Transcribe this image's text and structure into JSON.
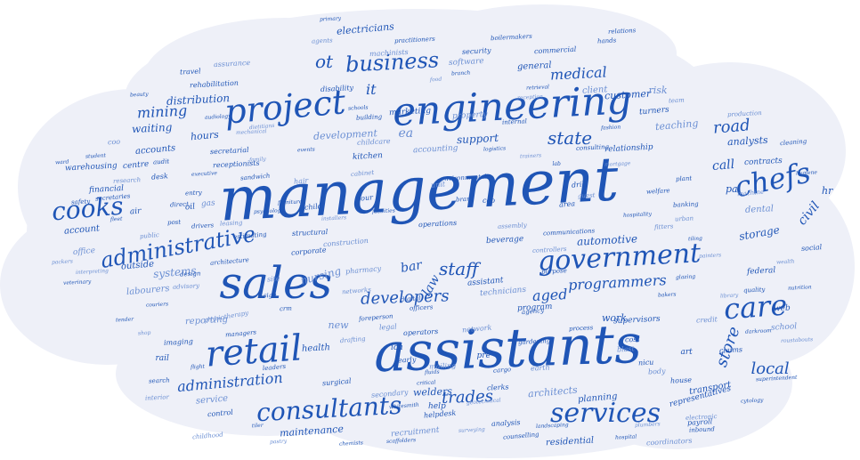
{
  "title": "",
  "colors": {
    "background": "#ffffff",
    "cloud": "#eef0f8",
    "word_dark": "#1f55b6",
    "word_light": "#6b8fd3"
  },
  "words": [
    {
      "text": "management",
      "tier": "xl"
    },
    {
      "text": "assistants",
      "tier": "xl"
    },
    {
      "text": "sales",
      "tier": "lg"
    },
    {
      "text": "engineering",
      "tier": "lg"
    },
    {
      "text": "project",
      "tier": "lg"
    },
    {
      "text": "retail",
      "tier": "lg"
    },
    {
      "text": "services",
      "tier": "md"
    },
    {
      "text": "government",
      "tier": "md"
    },
    {
      "text": "consultants",
      "tier": "md"
    },
    {
      "text": "chefs",
      "tier": "md"
    },
    {
      "text": "care",
      "tier": "md"
    },
    {
      "text": "cooks",
      "tier": "md"
    },
    {
      "text": "administrative",
      "tier": "md"
    },
    {
      "text": "business",
      "tier": "md"
    },
    {
      "text": "state",
      "tier": "sm"
    },
    {
      "text": "staff",
      "tier": "sm"
    },
    {
      "text": "developers",
      "tier": "sm"
    },
    {
      "text": "programmers",
      "tier": "sm"
    },
    {
      "text": "store",
      "tier": "sm"
    },
    {
      "text": "road",
      "tier": "sm"
    },
    {
      "text": "local",
      "tier": "sm"
    },
    {
      "text": "trades",
      "tier": "sm"
    },
    {
      "text": "administration",
      "tier": "sm"
    },
    {
      "text": "medical",
      "tier": "sm"
    },
    {
      "text": "mining",
      "tier": "sm"
    },
    {
      "text": "aged",
      "tier": "sm"
    },
    {
      "text": "law",
      "tier": "sm"
    },
    {
      "text": "call",
      "tier": "sm"
    },
    {
      "text": "civil",
      "tier": "sm"
    },
    {
      "text": "bar",
      "tier": "sm"
    },
    {
      "text": "nursing",
      "tier": "xs"
    },
    {
      "text": "automotive",
      "tier": "xs"
    },
    {
      "text": "storage",
      "tier": "xs"
    },
    {
      "text": "systems",
      "tier": "xs"
    },
    {
      "text": "distribution",
      "tier": "xs"
    },
    {
      "text": "support",
      "tier": "xs"
    },
    {
      "text": "development",
      "tier": "xs"
    },
    {
      "text": "waiting",
      "tier": "xs"
    },
    {
      "text": "hours",
      "tier": "xs"
    },
    {
      "text": "teaching",
      "tier": "xs"
    },
    {
      "text": "analysts",
      "tier": "xs"
    },
    {
      "text": "customer",
      "tier": "xs"
    },
    {
      "text": "client",
      "tier": "xs"
    },
    {
      "text": "general",
      "tier": "xs"
    },
    {
      "text": "electricians",
      "tier": "xs"
    },
    {
      "text": "architects",
      "tier": "xs"
    },
    {
      "text": "welders",
      "tier": "xs"
    },
    {
      "text": "work",
      "tier": "xs"
    },
    {
      "text": "new",
      "tier": "xs"
    },
    {
      "text": "health",
      "tier": "xs"
    },
    {
      "text": "maintenance",
      "tier": "xs"
    },
    {
      "text": "labourers",
      "tier": "xs"
    },
    {
      "text": "outside",
      "tier": "xs"
    },
    {
      "text": "account",
      "tier": "xs"
    },
    {
      "text": "service",
      "tier": "xs"
    },
    {
      "text": "planning",
      "tier": "xs"
    },
    {
      "text": "transport",
      "tier": "xs"
    },
    {
      "text": "reporting",
      "tier": "xs"
    },
    {
      "text": "accounts",
      "tier": "xs"
    },
    {
      "text": "centre",
      "tier": "xs"
    },
    {
      "text": "recruitment",
      "tier": "xs"
    },
    {
      "text": "representatives",
      "tier": "xs"
    },
    {
      "text": "residential",
      "tier": "xs"
    },
    {
      "text": "dental",
      "tier": "xs"
    },
    {
      "text": "pa",
      "tier": "xs"
    },
    {
      "text": "hr",
      "tier": "xs"
    },
    {
      "text": "ea",
      "tier": "xs"
    },
    {
      "text": "ot",
      "tier": "xs"
    },
    {
      "text": "it",
      "tier": "xs"
    },
    {
      "text": "risk",
      "tier": "xs"
    },
    {
      "text": "turners",
      "tier": "xs"
    },
    {
      "text": "web",
      "tier": "xs"
    },
    {
      "text": "school",
      "tier": "xs"
    },
    {
      "text": "federal",
      "tier": "xs"
    },
    {
      "text": "supervisors",
      "tier": "xs"
    },
    {
      "text": "technicians",
      "tier": "xs"
    },
    {
      "text": "program",
      "tier": "xs"
    },
    {
      "text": "assistant",
      "tier": "xs"
    },
    {
      "text": "software",
      "tier": "xs"
    },
    {
      "text": "security",
      "tier": "xs"
    },
    {
      "text": "helpdesk",
      "tier": "xs"
    },
    {
      "text": "property",
      "tier": "xs"
    },
    {
      "text": "beverage",
      "tier": "xs"
    },
    {
      "text": "marketing",
      "tier": "xs"
    },
    {
      "text": "accounting",
      "tier": "xs"
    },
    {
      "text": "kitchen",
      "tier": "xs"
    },
    {
      "text": "operations",
      "tier": "xs"
    },
    {
      "text": "construction",
      "tier": "xs"
    },
    {
      "text": "warehousing",
      "tier": "xs"
    },
    {
      "text": "financial",
      "tier": "xs"
    },
    {
      "text": "office",
      "tier": "xs"
    },
    {
      "text": "rehabilitation",
      "tier": "xs"
    },
    {
      "text": "disability",
      "tier": "xs"
    },
    {
      "text": "machinists",
      "tier": "xs"
    },
    {
      "text": "relationship",
      "tier": "xs"
    },
    {
      "text": "contracts",
      "tier": "xs"
    },
    {
      "text": "production",
      "tier": "xs"
    },
    {
      "text": "commercial",
      "tier": "xs"
    },
    {
      "text": "boilermakers",
      "tier": "xs"
    },
    {
      "text": "pharmacy",
      "tier": "xs"
    },
    {
      "text": "corporate",
      "tier": "xs"
    },
    {
      "text": "structural",
      "tier": "xs"
    },
    {
      "text": "childcare",
      "tier": "xs"
    },
    {
      "text": "receptionists",
      "tier": "xs"
    },
    {
      "text": "secretarial",
      "tier": "xs"
    },
    {
      "text": "assurance",
      "tier": "xs"
    },
    {
      "text": "travel",
      "tier": "xs"
    },
    {
      "text": "imaging",
      "tier": "xs"
    },
    {
      "text": "physiotherapy",
      "tier": "xs"
    },
    {
      "text": "managers",
      "tier": "xs"
    },
    {
      "text": "leaders",
      "tier": "xs"
    },
    {
      "text": "legal",
      "tier": "xs"
    },
    {
      "text": "operators",
      "tier": "xs"
    },
    {
      "text": "foreperson",
      "tier": "xs"
    },
    {
      "text": "drafting",
      "tier": "xs"
    },
    {
      "text": "icu",
      "tier": "xs"
    },
    {
      "text": "early",
      "tier": "xs"
    },
    {
      "text": "mailing",
      "tier": "xs"
    },
    {
      "text": "clerks",
      "tier": "xs"
    },
    {
      "text": "agency",
      "tier": "xs"
    },
    {
      "text": "blast",
      "tier": "xs"
    },
    {
      "text": "cost",
      "tier": "xs"
    },
    {
      "text": "nicu",
      "tier": "xs"
    },
    {
      "text": "body",
      "tier": "xs"
    },
    {
      "text": "art",
      "tier": "xs"
    },
    {
      "text": "claims",
      "tier": "xs"
    },
    {
      "text": "credit",
      "tier": "xs"
    },
    {
      "text": "quality",
      "tier": "xs"
    },
    {
      "text": "social",
      "tier": "xs"
    },
    {
      "text": "machine",
      "tier": "xs"
    },
    {
      "text": "banking",
      "tier": "xs"
    },
    {
      "text": "drill",
      "tier": "xs"
    },
    {
      "text": "guest",
      "tier": "xs"
    },
    {
      "text": "area",
      "tier": "xs"
    },
    {
      "text": "brand",
      "tier": "xs"
    },
    {
      "text": "unit",
      "tier": "xs"
    },
    {
      "text": "ceo",
      "tier": "xs"
    },
    {
      "text": "desk",
      "tier": "xs"
    },
    {
      "text": "hair",
      "tier": "xs"
    },
    {
      "text": "child",
      "tier": "xs"
    },
    {
      "text": "tour",
      "tier": "xs"
    },
    {
      "text": "coo",
      "tier": "xs"
    },
    {
      "text": "air",
      "tier": "xs"
    },
    {
      "text": "oil",
      "tier": "xs"
    },
    {
      "text": "gas",
      "tier": "xs"
    },
    {
      "text": "post",
      "tier": "xs"
    },
    {
      "text": "drivers",
      "tier": "xs"
    },
    {
      "text": "site",
      "tier": "xs"
    },
    {
      "text": "sign",
      "tier": "xs"
    },
    {
      "text": "crm",
      "tier": "xs"
    },
    {
      "text": "networks",
      "tier": "xs"
    },
    {
      "text": "digital",
      "tier": "xs"
    },
    {
      "text": "officers",
      "tier": "xs"
    },
    {
      "text": "network",
      "tier": "xs"
    },
    {
      "text": "pre",
      "tier": "xs"
    },
    {
      "text": "cargo",
      "tier": "xs"
    },
    {
      "text": "earth",
      "tier": "xs"
    },
    {
      "text": "house",
      "tier": "xs"
    },
    {
      "text": "payroll",
      "tier": "xs"
    },
    {
      "text": "coordinators",
      "tier": "xs"
    },
    {
      "text": "counselling",
      "tier": "xs"
    },
    {
      "text": "analysis",
      "tier": "xs"
    },
    {
      "text": "secondary",
      "tier": "xs"
    },
    {
      "text": "surgical",
      "tier": "xs"
    },
    {
      "text": "control",
      "tier": "xs"
    },
    {
      "text": "childhood",
      "tier": "xs"
    },
    {
      "text": "rail",
      "tier": "xs"
    },
    {
      "text": "search",
      "tier": "xs"
    },
    {
      "text": "interior",
      "tier": "xs"
    },
    {
      "text": "help",
      "tier": "xs"
    },
    {
      "text": "design",
      "tier": "xs"
    },
    {
      "text": "advisory",
      "tier": "xs"
    },
    {
      "text": "architecture",
      "tier": "xs"
    },
    {
      "text": "estimating",
      "tier": "xs"
    },
    {
      "text": "leasing",
      "tier": "xs"
    },
    {
      "text": "entry",
      "tier": "xs"
    },
    {
      "text": "direct",
      "tier": "xs"
    },
    {
      "text": "public",
      "tier": "xs"
    },
    {
      "text": "safety",
      "tier": "xs"
    },
    {
      "text": "audit",
      "tier": "xs"
    },
    {
      "text": "research",
      "tier": "xs"
    },
    {
      "text": "secretaries",
      "tier": "xs"
    },
    {
      "text": "sandwich",
      "tier": "xs"
    },
    {
      "text": "cabinet",
      "tier": "xs"
    },
    {
      "text": "building",
      "tier": "xs"
    },
    {
      "text": "practitioners",
      "tier": "xs"
    },
    {
      "text": "agents",
      "tier": "xs"
    },
    {
      "text": "internal",
      "tier": "xs"
    },
    {
      "text": "consulting",
      "tier": "xs"
    },
    {
      "text": "team",
      "tier": "xs"
    },
    {
      "text": "hands",
      "tier": "xs"
    },
    {
      "text": "relations",
      "tier": "xs"
    },
    {
      "text": "urban",
      "tier": "xs"
    },
    {
      "text": "welfare",
      "tier": "xs"
    },
    {
      "text": "plant",
      "tier": "xs"
    },
    {
      "text": "fitters",
      "tier": "xs"
    },
    {
      "text": "cleaning",
      "tier": "xs"
    },
    {
      "text": "inbound",
      "tier": "xs"
    },
    {
      "text": "electronic",
      "tier": "xs"
    },
    {
      "text": "process",
      "tier": "xs"
    },
    {
      "text": "gardening",
      "tier": "xs"
    },
    {
      "text": "controllers",
      "tier": "xs"
    },
    {
      "text": "purpose",
      "tier": "xs"
    },
    {
      "text": "communications",
      "tier": "xs"
    },
    {
      "text": "assembly",
      "tier": "xs"
    },
    {
      "text": "environmental",
      "tier": "xs"
    },
    {
      "text": "critical",
      "tier": "xs"
    },
    {
      "text": "geotechnical",
      "tier": "xs"
    },
    {
      "text": "fluids",
      "tier": "xs"
    },
    {
      "text": "whitesmith",
      "tier": "xs"
    },
    {
      "text": "reception",
      "tier": "xs"
    },
    {
      "text": "primary",
      "tier": "xs"
    },
    {
      "text": "branch",
      "tier": "xs"
    },
    {
      "text": "food",
      "tier": "xs"
    },
    {
      "text": "retrieval",
      "tier": "xs"
    },
    {
      "text": "beauty",
      "tier": "xs"
    },
    {
      "text": "packers",
      "tier": "xs"
    },
    {
      "text": "veterinary",
      "tier": "xs"
    },
    {
      "text": "couriers",
      "tier": "xs"
    },
    {
      "text": "interpreting",
      "tier": "xs"
    },
    {
      "text": "ward",
      "tier": "xs"
    },
    {
      "text": "student",
      "tier": "xs"
    },
    {
      "text": "family",
      "tier": "xs"
    },
    {
      "text": "executive",
      "tier": "xs"
    },
    {
      "text": "schools",
      "tier": "xs"
    },
    {
      "text": "dietitians",
      "tier": "xs"
    },
    {
      "text": "events",
      "tier": "xs"
    },
    {
      "text": "furniture",
      "tier": "xs"
    },
    {
      "text": "mechanical",
      "tier": "xs"
    },
    {
      "text": "audiology",
      "tier": "xs"
    },
    {
      "text": "psychology",
      "tier": "xs"
    },
    {
      "text": "installers",
      "tier": "xs"
    },
    {
      "text": "facilities",
      "tier": "xs"
    },
    {
      "text": "logistics",
      "tier": "xs"
    },
    {
      "text": "trainers",
      "tier": "xs"
    },
    {
      "text": "lab",
      "tier": "xs"
    },
    {
      "text": "fashion",
      "tier": "xs"
    },
    {
      "text": "mortgage",
      "tier": "xs"
    },
    {
      "text": "hospitality",
      "tier": "xs"
    },
    {
      "text": "tiling",
      "tier": "xs"
    },
    {
      "text": "painters",
      "tier": "xs"
    },
    {
      "text": "glazing",
      "tier": "xs"
    },
    {
      "text": "bakers",
      "tier": "xs"
    },
    {
      "text": "library",
      "tier": "xs"
    },
    {
      "text": "nutrition",
      "tier": "xs"
    },
    {
      "text": "darkroom",
      "tier": "xs"
    },
    {
      "text": "roustabouts",
      "tier": "xs"
    },
    {
      "text": "superintendent",
      "tier": "xs"
    },
    {
      "text": "cytology",
      "tier": "xs"
    },
    {
      "text": "plumbers",
      "tier": "xs"
    },
    {
      "text": "hospital",
      "tier": "xs"
    },
    {
      "text": "landscaping",
      "tier": "xs"
    },
    {
      "text": "surveying",
      "tier": "xs"
    },
    {
      "text": "scaffolders",
      "tier": "xs"
    },
    {
      "text": "chemists",
      "tier": "xs"
    },
    {
      "text": "pastry",
      "tier": "xs"
    },
    {
      "text": "tiler",
      "tier": "xs"
    },
    {
      "text": "flight",
      "tier": "xs"
    },
    {
      "text": "shop",
      "tier": "xs"
    },
    {
      "text": "tender",
      "tier": "xs"
    },
    {
      "text": "fleet",
      "tier": "xs"
    },
    {
      "text": "wealth",
      "tier": "xs"
    },
    {
      "text": "hygiene",
      "tier": "xs"
    }
  ]
}
